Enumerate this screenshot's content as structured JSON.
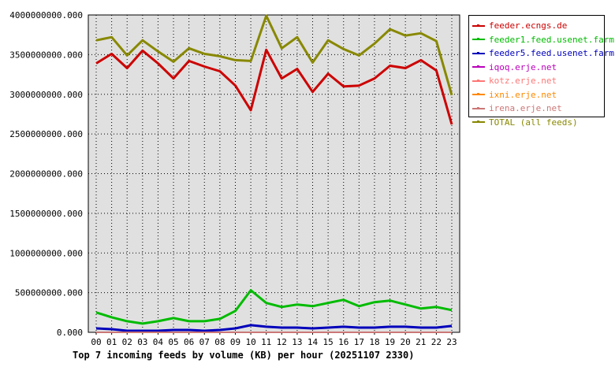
{
  "chart_data": {
    "type": "line",
    "title": "Top 7 incoming feeds by volume (KB) per hour (20251107 2330)",
    "xlabel": "",
    "ylabel": "",
    "categories": [
      "00",
      "01",
      "02",
      "03",
      "04",
      "05",
      "06",
      "07",
      "08",
      "09",
      "10",
      "11",
      "12",
      "13",
      "14",
      "15",
      "16",
      "17",
      "18",
      "19",
      "20",
      "21",
      "22",
      "23"
    ],
    "ylim": [
      0,
      4000000000
    ],
    "yticks": [
      "0.000",
      "500000000.000",
      "1000000000.000",
      "1500000000.000",
      "2000000000.000",
      "2500000000.000",
      "3000000000.000",
      "3500000000.000",
      "4000000000.000"
    ],
    "ytick_values": [
      0,
      500000000,
      1000000000,
      1500000000,
      2000000000,
      2500000000,
      3000000000,
      3500000000,
      4000000000
    ],
    "grid": true,
    "legend_position": "right",
    "series": [
      {
        "name": "feeder.ecngs.de",
        "color": "#cc0000",
        "values": [
          3390000000,
          3510000000,
          3330000000,
          3550000000,
          3390000000,
          3200000000,
          3420000000,
          3350000000,
          3290000000,
          3110000000,
          2800000000,
          3560000000,
          3200000000,
          3320000000,
          3030000000,
          3260000000,
          3100000000,
          3110000000,
          3200000000,
          3360000000,
          3330000000,
          3430000000,
          3300000000,
          2620000000
        ]
      },
      {
        "name": "feeder1.feed.usenet.farm",
        "color": "#00bb00",
        "values": [
          250000000,
          190000000,
          140000000,
          110000000,
          140000000,
          180000000,
          140000000,
          140000000,
          170000000,
          270000000,
          530000000,
          370000000,
          320000000,
          350000000,
          330000000,
          370000000,
          410000000,
          330000000,
          380000000,
          400000000,
          350000000,
          300000000,
          320000000,
          280000000
        ]
      },
      {
        "name": "feeder5.feed.usenet.farm",
        "color": "#0000bb",
        "values": [
          50000000,
          40000000,
          20000000,
          20000000,
          20000000,
          30000000,
          30000000,
          20000000,
          30000000,
          50000000,
          90000000,
          70000000,
          60000000,
          60000000,
          50000000,
          60000000,
          70000000,
          60000000,
          60000000,
          70000000,
          70000000,
          60000000,
          60000000,
          80000000
        ]
      },
      {
        "name": "iqoq.erje.net",
        "color": "#bb00bb",
        "values": [
          0,
          0,
          0,
          0,
          0,
          0,
          0,
          0,
          0,
          0,
          0,
          0,
          0,
          0,
          0,
          0,
          0,
          0,
          0,
          0,
          0,
          0,
          0,
          0
        ]
      },
      {
        "name": "kotz.erje.net",
        "color": "#ff7777",
        "values": [
          0,
          0,
          0,
          0,
          0,
          0,
          0,
          0,
          0,
          0,
          0,
          0,
          0,
          0,
          0,
          0,
          0,
          0,
          0,
          0,
          0,
          0,
          0,
          0
        ]
      },
      {
        "name": "ixni.erje.net",
        "color": "#ff8800",
        "values": [
          0,
          0,
          0,
          0,
          0,
          0,
          0,
          0,
          0,
          0,
          0,
          0,
          0,
          0,
          0,
          0,
          0,
          0,
          0,
          0,
          0,
          0,
          0,
          0
        ]
      },
      {
        "name": "irena.erje.net",
        "color": "#cc7777",
        "values": [
          0,
          0,
          0,
          0,
          0,
          0,
          0,
          0,
          0,
          0,
          0,
          0,
          0,
          0,
          0,
          0,
          0,
          0,
          0,
          0,
          0,
          0,
          0,
          0
        ]
      },
      {
        "name": "TOTAL (all feeds)",
        "color": "#888800",
        "values": [
          3680000000,
          3720000000,
          3490000000,
          3680000000,
          3540000000,
          3410000000,
          3580000000,
          3510000000,
          3480000000,
          3430000000,
          3420000000,
          3990000000,
          3580000000,
          3720000000,
          3400000000,
          3680000000,
          3570000000,
          3490000000,
          3640000000,
          3820000000,
          3740000000,
          3770000000,
          3670000000,
          2990000000
        ]
      }
    ]
  },
  "colors": {
    "plot_background": "#e0e0e0",
    "grid": "#000000"
  }
}
